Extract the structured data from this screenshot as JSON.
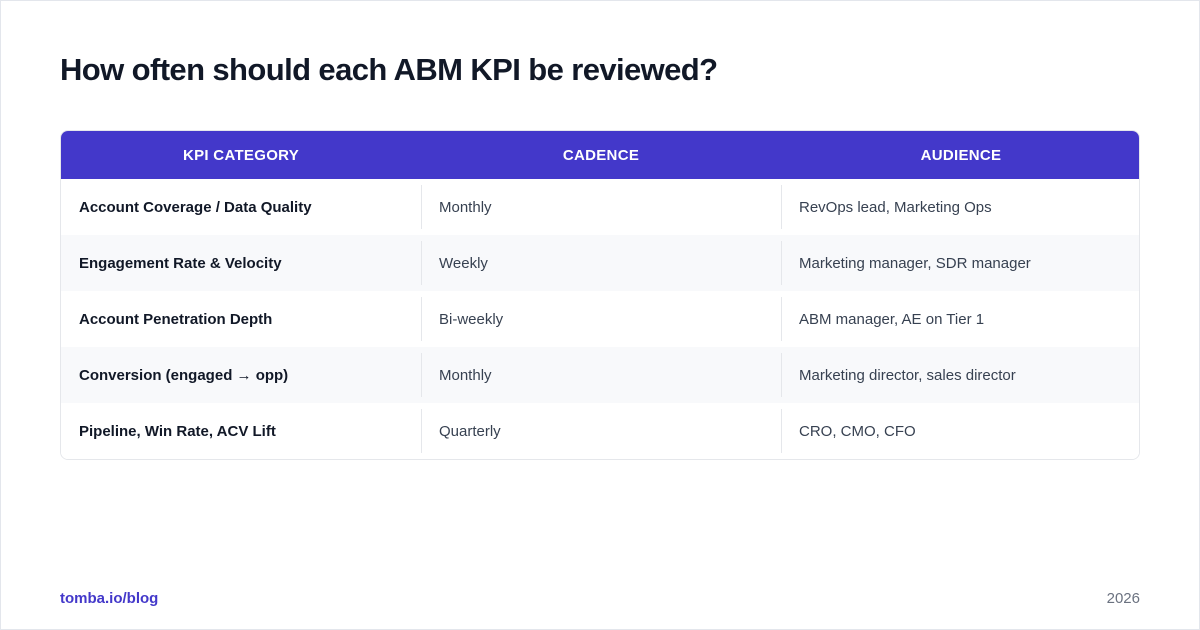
{
  "title": "How often should each ABM KPI be reviewed?",
  "table": {
    "headers": [
      "KPI CATEGORY",
      "CADENCE",
      "AUDIENCE"
    ],
    "rows": [
      {
        "kpi": "Account Coverage / Data Quality",
        "cadence": "Monthly",
        "audience": "RevOps lead, Marketing Ops"
      },
      {
        "kpi": "Engagement Rate & Velocity",
        "cadence": "Weekly",
        "audience": "Marketing manager, SDR manager"
      },
      {
        "kpi": "Account Penetration Depth",
        "cadence": "Bi-weekly",
        "audience": "ABM manager, AE on Tier 1"
      },
      {
        "kpi": "Conversion (engaged → opp)",
        "cadence": "Monthly",
        "audience": "Marketing director, sales director"
      },
      {
        "kpi": "Pipeline, Win Rate, ACV Lift",
        "cadence": "Quarterly",
        "audience": "CRO, CMO, CFO"
      }
    ]
  },
  "footer": {
    "link": "tomba.io/blog",
    "year": "2026"
  },
  "colors": {
    "header_bg": "#4338ca",
    "accent": "#4338ca",
    "alt_row_bg": "#f8f9fb"
  }
}
